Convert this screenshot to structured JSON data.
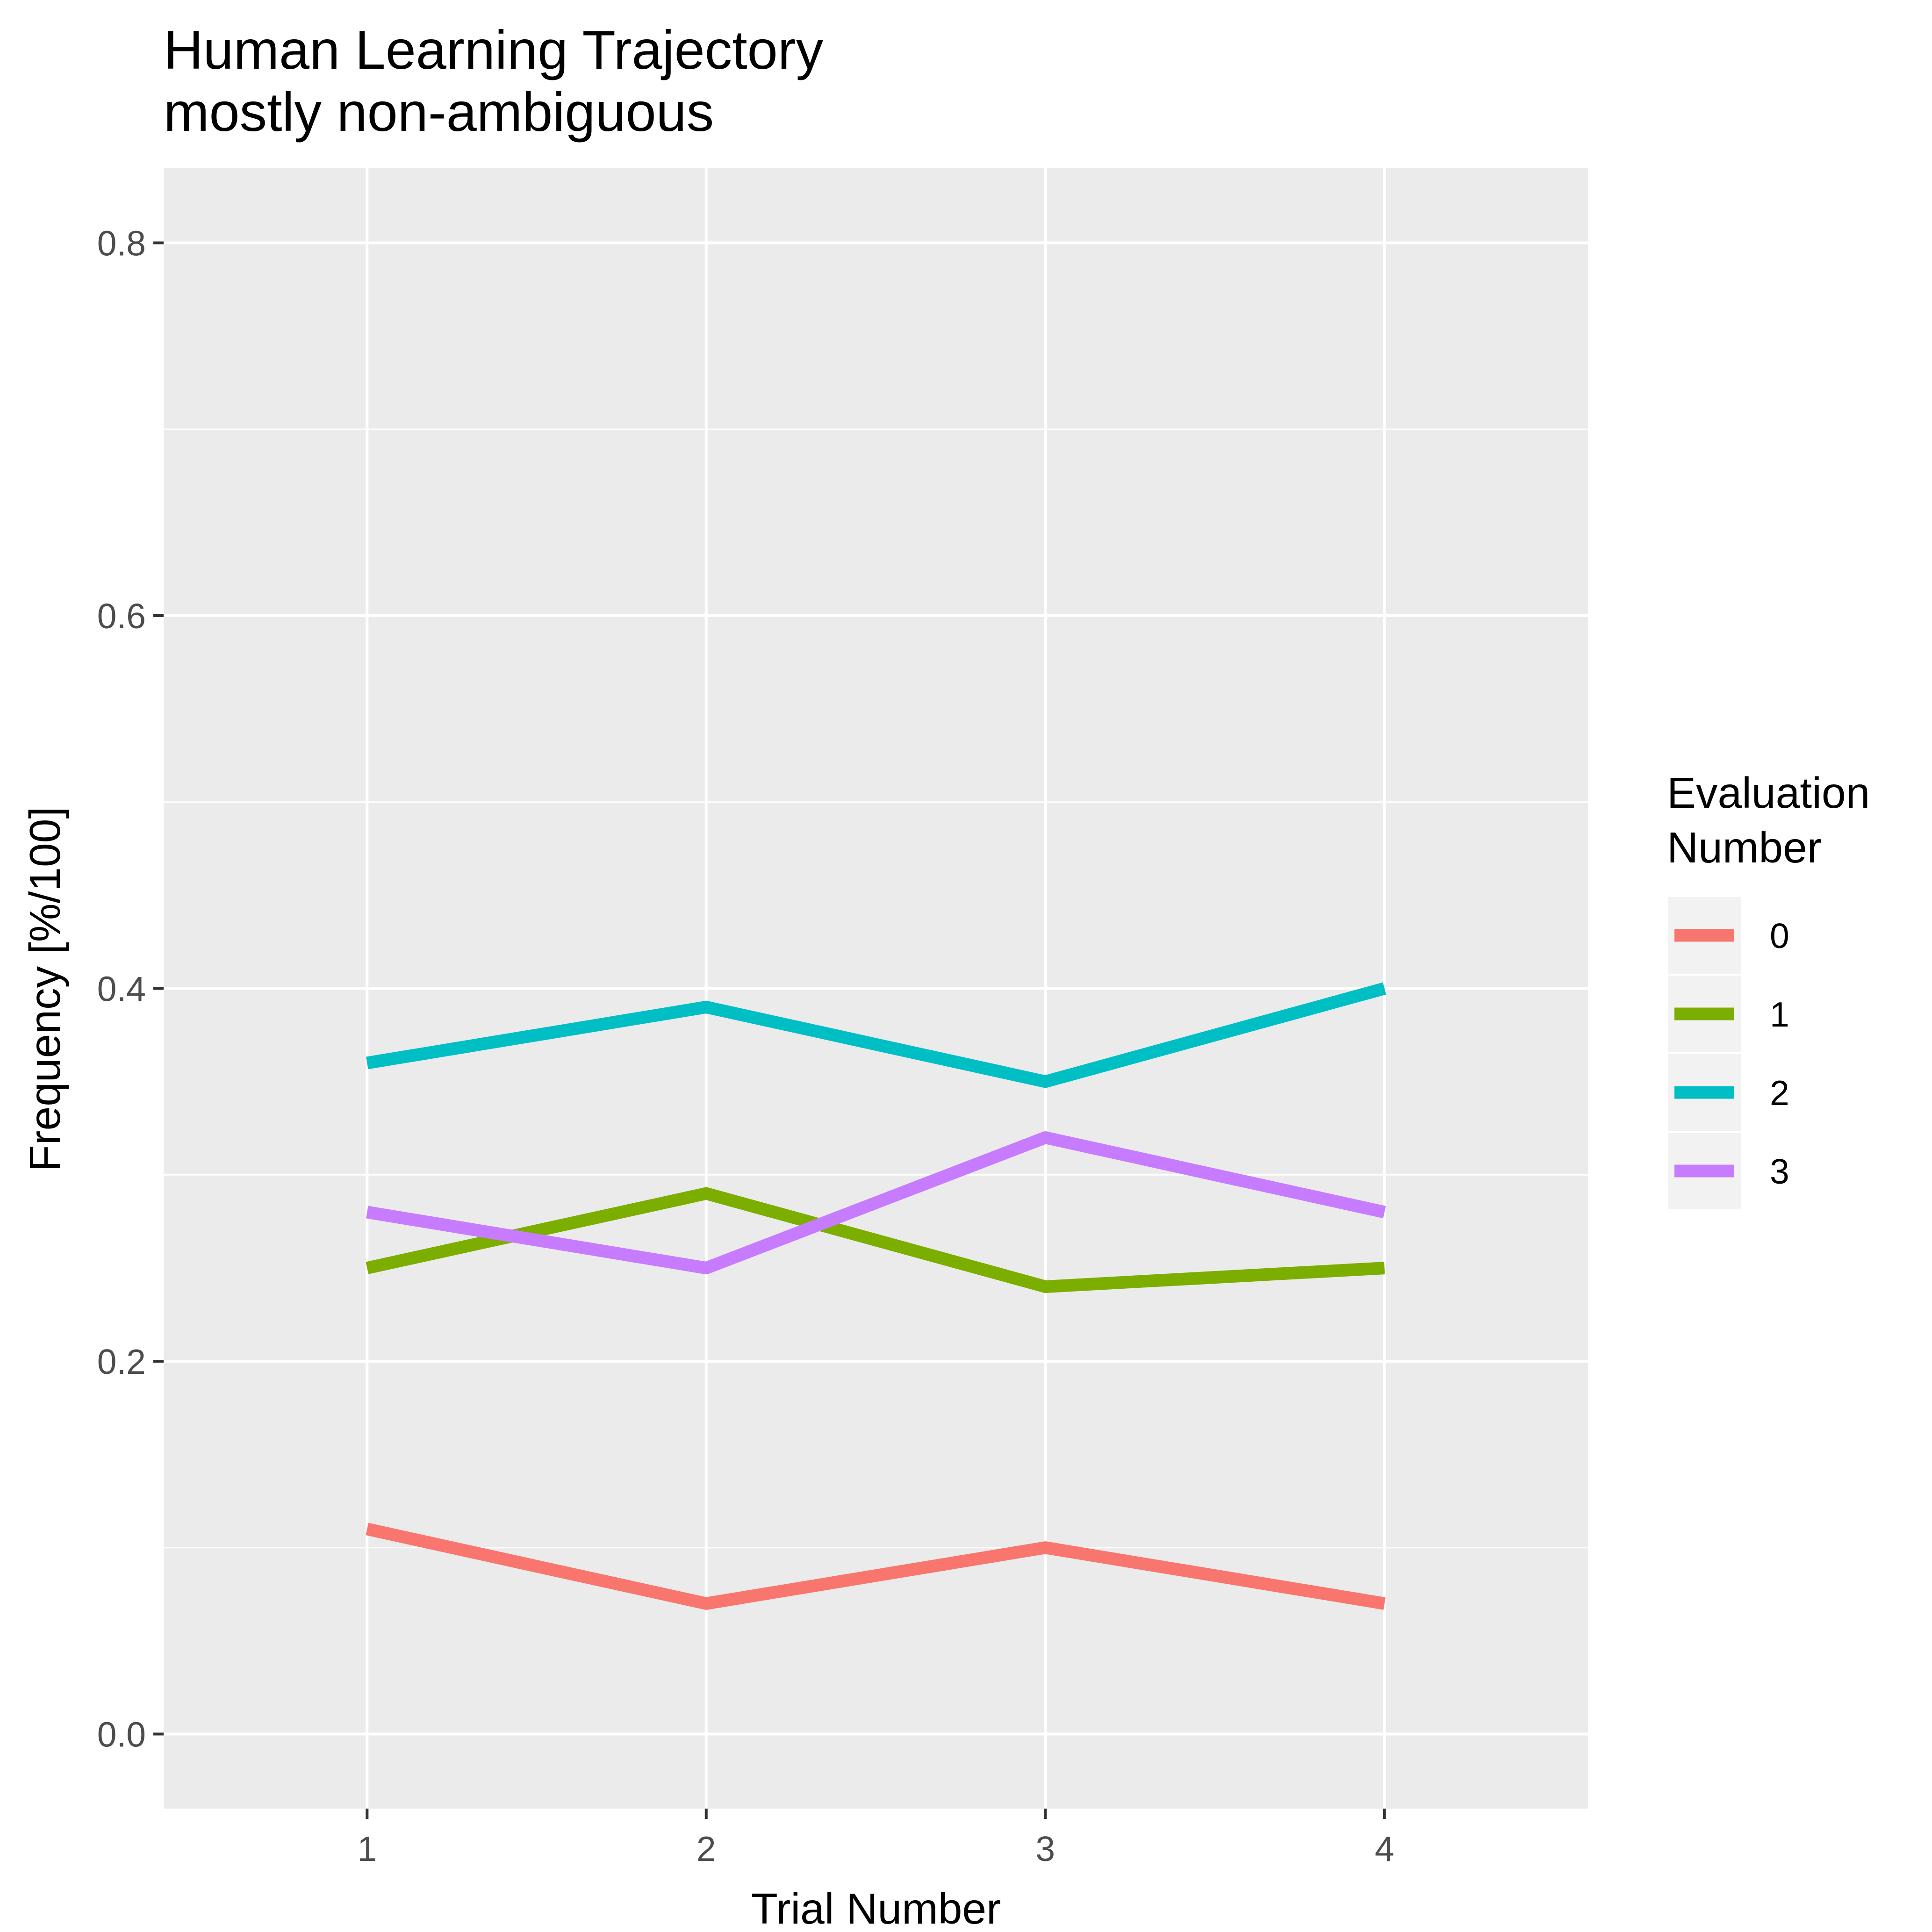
{
  "chart_data": {
    "type": "line",
    "title": "Human Learning Trajectory",
    "subtitle": "mostly non-ambiguous",
    "xlabel": "Trial Number",
    "ylabel": "Frequency [%/100]",
    "x": [
      1,
      2,
      3,
      4
    ],
    "xlim": [
      0.4,
      4.6
    ],
    "ylim": [
      -0.04,
      0.84
    ],
    "x_ticks": [
      {
        "value": 1,
        "label": "1"
      },
      {
        "value": 2,
        "label": "2"
      },
      {
        "value": 3,
        "label": "3"
      },
      {
        "value": 4,
        "label": "4"
      }
    ],
    "y_ticks": [
      {
        "value": 0.0,
        "label": "0.0"
      },
      {
        "value": 0.2,
        "label": "0.2"
      },
      {
        "value": 0.4,
        "label": "0.4"
      },
      {
        "value": 0.6,
        "label": "0.6"
      },
      {
        "value": 0.8,
        "label": "0.8"
      }
    ],
    "y_minor": [
      0.1,
      0.3,
      0.5,
      0.7
    ],
    "grid": true,
    "legend": {
      "title_line1": "Evaluation",
      "title_line2": "Number",
      "placement": "right"
    },
    "series": [
      {
        "name": "0",
        "color": "#F8766D",
        "values": [
          0.11,
          0.07,
          0.1,
          0.07
        ]
      },
      {
        "name": "1",
        "color": "#7CAE00",
        "values": [
          0.25,
          0.29,
          0.24,
          0.25
        ]
      },
      {
        "name": "2",
        "color": "#00BFC4",
        "values": [
          0.36,
          0.39,
          0.35,
          0.4
        ]
      },
      {
        "name": "3",
        "color": "#C77CFF",
        "values": [
          0.28,
          0.25,
          0.32,
          0.28
        ]
      }
    ]
  }
}
